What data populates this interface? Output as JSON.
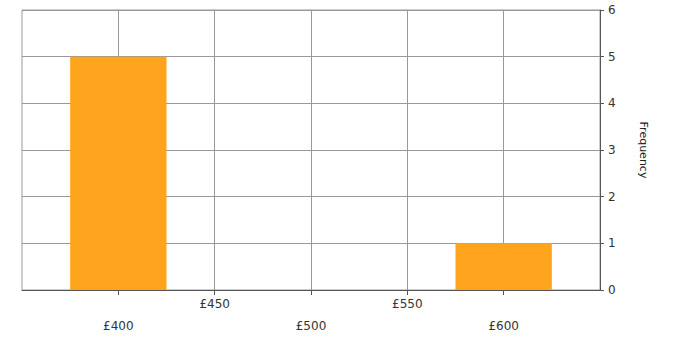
{
  "chart_data": {
    "type": "histogram",
    "bins": [
      375,
      425,
      475,
      525,
      575,
      625
    ],
    "values": [
      5,
      0,
      0,
      0,
      1
    ],
    "color": "#ffa41c",
    "xlim": [
      350,
      650
    ],
    "xticks": [
      {
        "value": 400,
        "label": "£400"
      },
      {
        "value": 450,
        "label": "£450"
      },
      {
        "value": 500,
        "label": "£500"
      },
      {
        "value": 550,
        "label": "£550"
      },
      {
        "value": 600,
        "label": "£600"
      }
    ],
    "ylim": [
      0,
      6
    ],
    "yticks": [
      0,
      1,
      2,
      3,
      4,
      5,
      6
    ],
    "y_label": "Frequency",
    "grid": true
  }
}
